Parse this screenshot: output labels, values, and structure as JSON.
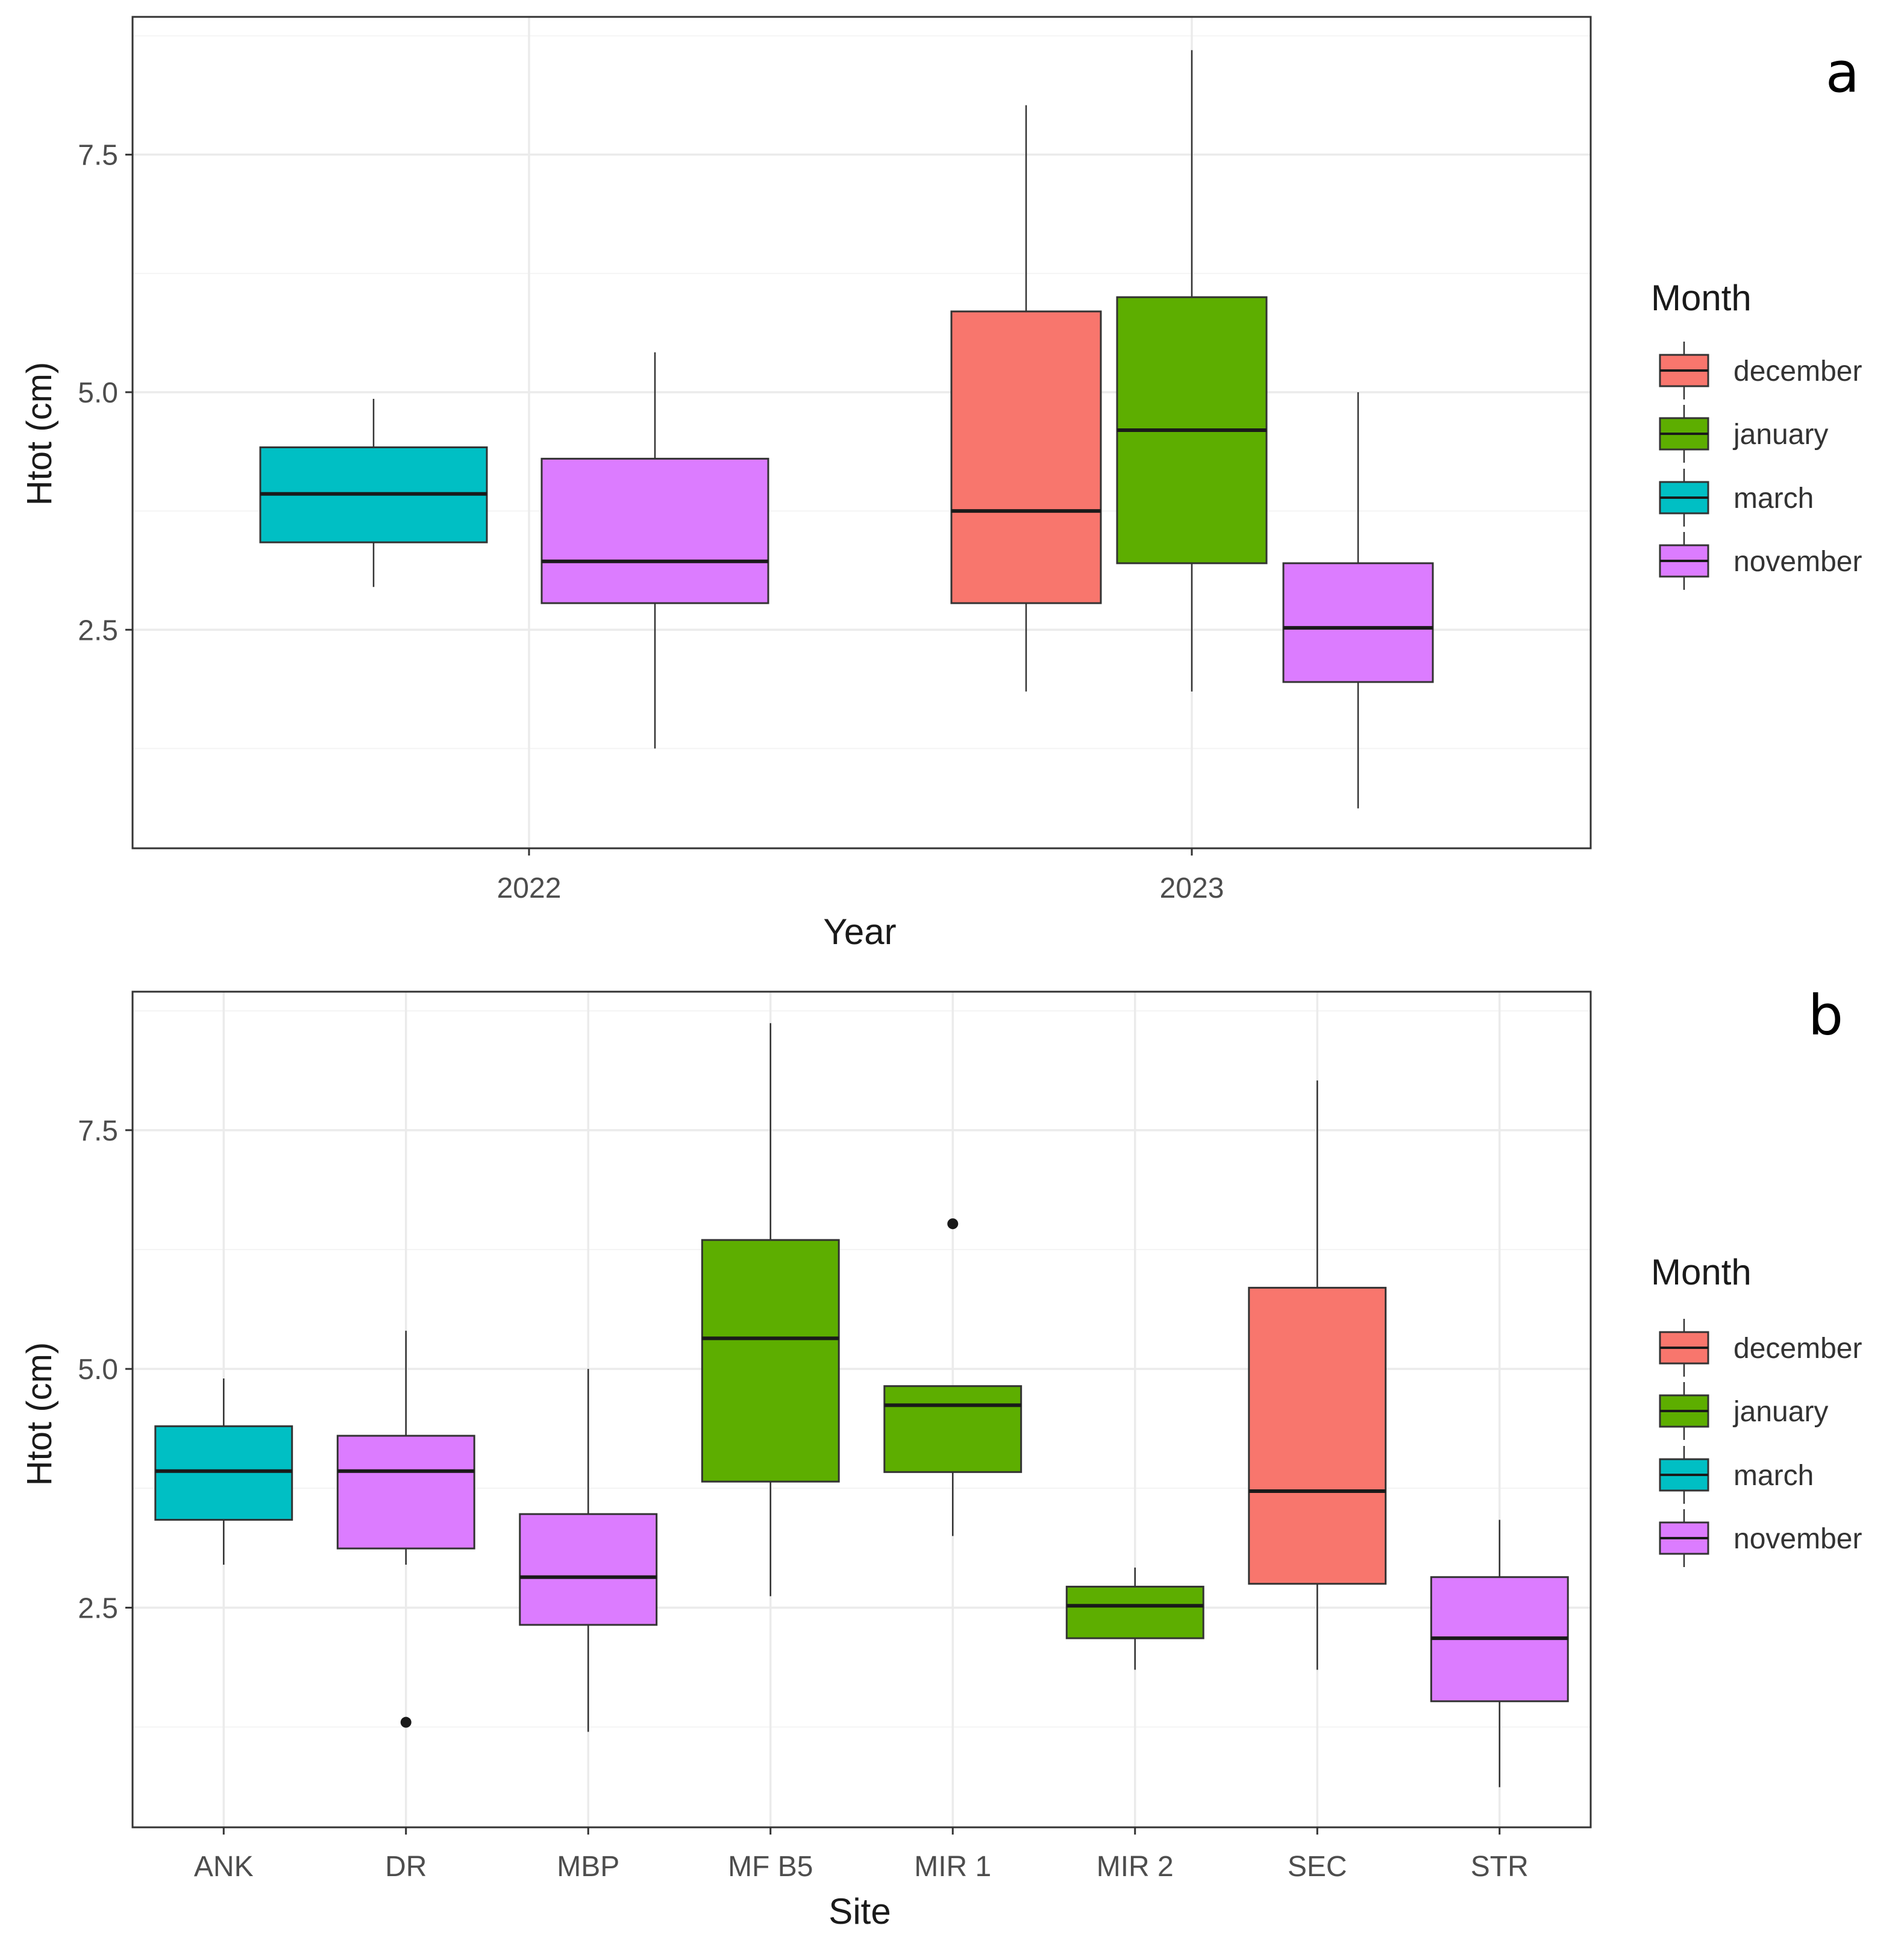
{
  "colors": {
    "december": "#F8766D",
    "january": "#5DAE00",
    "march": "#00BFC4",
    "november": "#DC7CFF",
    "grid_major": "#EBEBEB",
    "grid_minor": "#F4F4F4",
    "panel_border": "#333333",
    "median": "#1a1a1a",
    "whisker": "#333333"
  },
  "legend": {
    "title": "Month",
    "entries": [
      {
        "key": "december",
        "label": "december"
      },
      {
        "key": "january",
        "label": "january"
      },
      {
        "key": "march",
        "label": "march"
      },
      {
        "key": "november",
        "label": "november"
      }
    ]
  },
  "chart_data": [
    {
      "type": "boxplot",
      "panel_letter": "a",
      "xlabel": "Year",
      "ylabel": "Htot (cm)",
      "ylim": [
        0.2,
        8.95
      ],
      "yticks": [
        2.5,
        5.0,
        7.5
      ],
      "ytick_labels": [
        "2.5",
        "5.0",
        "7.5"
      ],
      "categories": [
        "2022",
        "2023"
      ],
      "boxes": [
        {
          "category": "2022",
          "group": "march",
          "min": 2.95,
          "q1": 3.42,
          "median": 3.93,
          "q3": 4.42,
          "max": 4.93,
          "outliers": []
        },
        {
          "category": "2022",
          "group": "november",
          "min": 1.25,
          "q1": 2.78,
          "median": 3.22,
          "q3": 4.3,
          "max": 5.42,
          "outliers": []
        },
        {
          "category": "2023",
          "group": "december",
          "min": 1.85,
          "q1": 2.78,
          "median": 3.75,
          "q3": 5.85,
          "max": 8.02,
          "outliers": []
        },
        {
          "category": "2023",
          "group": "january",
          "min": 1.85,
          "q1": 3.2,
          "median": 4.6,
          "q3": 6.0,
          "max": 8.6,
          "outliers": []
        },
        {
          "category": "2023",
          "group": "november",
          "min": 0.62,
          "q1": 1.95,
          "median": 2.52,
          "q3": 3.2,
          "max": 5.0,
          "outliers": []
        }
      ]
    },
    {
      "type": "boxplot",
      "panel_letter": "b",
      "xlabel": "Site",
      "ylabel": "Htot (cm)",
      "ylim": [
        0.2,
        8.95
      ],
      "yticks": [
        2.5,
        5.0,
        7.5
      ],
      "ytick_labels": [
        "2.5",
        "5.0",
        "7.5"
      ],
      "categories": [
        "ANK",
        "DR",
        "MBP",
        "MF B5",
        "MIR 1",
        "MIR 2",
        "SEC",
        "STR"
      ],
      "boxes": [
        {
          "category": "ANK",
          "group": "march",
          "min": 2.95,
          "q1": 3.42,
          "median": 3.93,
          "q3": 4.4,
          "max": 4.9,
          "outliers": []
        },
        {
          "category": "DR",
          "group": "november",
          "min": 2.95,
          "q1": 3.12,
          "median": 3.93,
          "q3": 4.3,
          "max": 5.4,
          "outliers": [
            1.3
          ]
        },
        {
          "category": "MBP",
          "group": "november",
          "min": 1.2,
          "q1": 2.32,
          "median": 2.82,
          "q3": 3.48,
          "max": 5.0,
          "outliers": []
        },
        {
          "category": "MF B5",
          "group": "january",
          "min": 2.62,
          "q1": 3.82,
          "median": 5.32,
          "q3": 6.35,
          "max": 8.62,
          "outliers": []
        },
        {
          "category": "MIR 1",
          "group": "january",
          "min": 3.25,
          "q1": 3.92,
          "median": 4.62,
          "q3": 4.82,
          "max": 4.82,
          "outliers": [
            6.52
          ]
        },
        {
          "category": "MIR 2",
          "group": "january",
          "min": 1.85,
          "q1": 2.18,
          "median": 2.52,
          "q3": 2.72,
          "max": 2.92,
          "outliers": []
        },
        {
          "category": "SEC",
          "group": "december",
          "min": 1.85,
          "q1": 2.75,
          "median": 3.72,
          "q3": 5.85,
          "max": 8.02,
          "outliers": []
        },
        {
          "category": "STR",
          "group": "november",
          "min": 0.62,
          "q1": 1.52,
          "median": 2.18,
          "q3": 2.82,
          "max": 3.42,
          "outliers": []
        }
      ]
    }
  ]
}
